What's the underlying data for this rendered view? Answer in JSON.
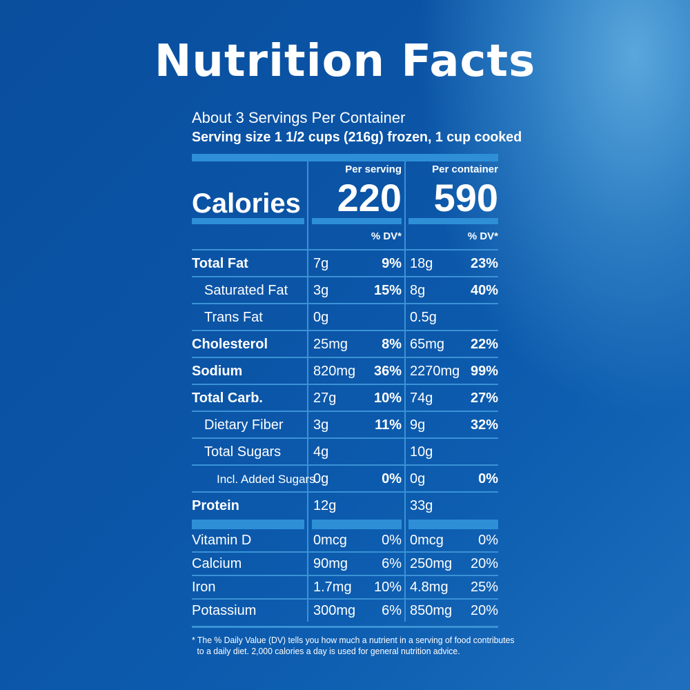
{
  "title": "Nutrition Facts",
  "servings_per_container": "About 3 Servings Per Container",
  "serving_size": "Serving size 1 1/2 cups (216g) frozen, 1 cup cooked",
  "columns": {
    "per_serving": "Per serving",
    "per_container": "Per container",
    "dv": "% DV*"
  },
  "calories": {
    "label": "Calories",
    "per_serving": "220",
    "per_container": "590"
  },
  "nutrients": [
    {
      "label": "Total Fat",
      "amt1": "7g",
      "pct1": "9%",
      "amt2": "18g",
      "pct2": "23%"
    },
    {
      "label": "Saturated Fat",
      "amt1": "3g",
      "pct1": "15%",
      "amt2": "8g",
      "pct2": "40%"
    },
    {
      "label": "Trans Fat",
      "amt1": "0g",
      "pct1": "",
      "amt2": "0.5g",
      "pct2": ""
    },
    {
      "label": "Cholesterol",
      "amt1": "25mg",
      "pct1": "8%",
      "amt2": "65mg",
      "pct2": "22%"
    },
    {
      "label": "Sodium",
      "amt1": "820mg",
      "pct1": "36%",
      "amt2": "2270mg",
      "pct2": "99%"
    },
    {
      "label": "Total Carb.",
      "amt1": "27g",
      "pct1": "10%",
      "amt2": "74g",
      "pct2": "27%"
    },
    {
      "label": "Dietary Fiber",
      "amt1": "3g",
      "pct1": "11%",
      "amt2": "9g",
      "pct2": "32%"
    },
    {
      "label": "Total Sugars",
      "amt1": "4g",
      "pct1": "",
      "amt2": "10g",
      "pct2": ""
    },
    {
      "label": "Incl. Added Sugars",
      "amt1": "0g",
      "pct1": "0%",
      "amt2": "0g",
      "pct2": "0%"
    },
    {
      "label": "Protein",
      "amt1": "12g",
      "pct1": "",
      "amt2": "33g",
      "pct2": ""
    }
  ],
  "vitamins": [
    {
      "label": "Vitamin D",
      "amt1": "0mcg",
      "pct1": "0%",
      "amt2": "0mcg",
      "pct2": "0%"
    },
    {
      "label": "Calcium",
      "amt1": "90mg",
      "pct1": "6%",
      "amt2": "250mg",
      "pct2": "20%"
    },
    {
      "label": "Iron",
      "amt1": "1.7mg",
      "pct1": "10%",
      "amt2": "4.8mg",
      "pct2": "25%"
    },
    {
      "label": "Potassium",
      "amt1": "300mg",
      "pct1": "6%",
      "amt2": "850mg",
      "pct2": "20%"
    }
  ],
  "footnote": {
    "line1": "* The % Daily Value (DV) tells you how much a nutrient in a serving of food contributes",
    "line2": "to a daily diet. 2,000 calories a day is used for general nutrition advice."
  }
}
